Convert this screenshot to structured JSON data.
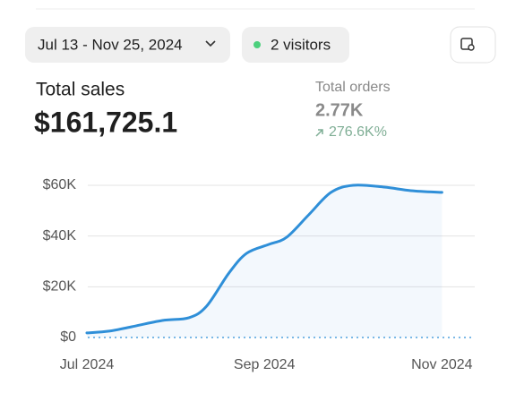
{
  "header": {
    "date_range": "Jul 13 - Nov 25, 2024",
    "visitors": "2 visitors"
  },
  "summary": {
    "sales_label": "Total sales",
    "sales_value": "$161,725.1",
    "orders_label": "Total orders",
    "orders_value": "2.77K",
    "orders_change": "276.6K%"
  },
  "chart_data": {
    "type": "line",
    "x": [
      7.0,
      7.25,
      7.5,
      7.85,
      8.15,
      8.35,
      8.6,
      8.8,
      9.05,
      9.25,
      9.5,
      9.75,
      10.0,
      10.35,
      10.65,
      11.0
    ],
    "series": [
      {
        "color": "#2f8fd8",
        "values": [
          1800,
          2500,
          4200,
          6700,
          7800,
          12400,
          25400,
          33200,
          36700,
          39500,
          48400,
          57200,
          60000,
          59300,
          57900,
          57200
        ]
      }
    ],
    "xlim": [
      7,
      11.37
    ],
    "xticks": [
      {
        "value": 7,
        "label": "Jul 2024"
      },
      {
        "value": 9,
        "label": "Sep 2024"
      },
      {
        "value": 11,
        "label": "Nov 2024"
      }
    ],
    "ylim": [
      0,
      60000
    ],
    "yticks": [
      {
        "value": 0,
        "label": "$0"
      },
      {
        "value": 20000,
        "label": "$20K"
      },
      {
        "value": 40000,
        "label": "$40K"
      },
      {
        "value": 60000,
        "label": "$60K"
      }
    ],
    "grid": true
  }
}
